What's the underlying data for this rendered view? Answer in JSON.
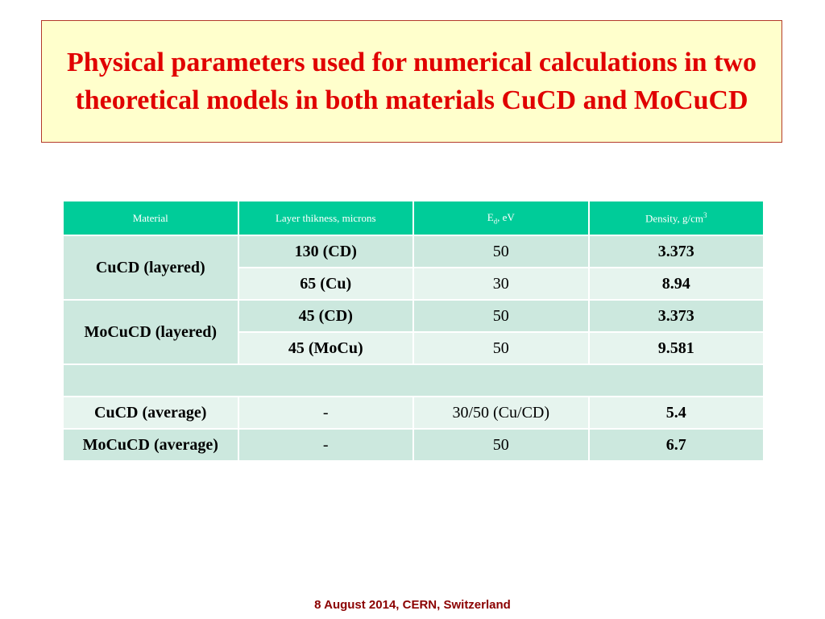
{
  "title": "Physical parameters used for numerical calculations in two theoretical models in both materials CuCD and MoCuCD",
  "table": {
    "headers": {
      "material": "Material",
      "thickness": "Layer thikness, microns",
      "ed_main": "E",
      "ed_sub": "d",
      "ed_unit": ", eV",
      "density_main": "Density, g/cm",
      "density_sup": "3"
    },
    "rows": [
      {
        "material": "CuCD (layered)",
        "thickness": "130 (CD)",
        "ed": "50",
        "density": "3.373"
      },
      {
        "material": "",
        "thickness": "65 (Cu)",
        "ed": "30",
        "density": "8.94"
      },
      {
        "material": "MoCuCD (layered)",
        "thickness": "45 (CD)",
        "ed": "50",
        "density": "3.373"
      },
      {
        "material": "",
        "thickness": "45 (MoCu)",
        "ed": "50",
        "density": "9.581"
      },
      {
        "material": "CuCD (average)",
        "thickness": "-",
        "ed": "30/50 (Cu/CD)",
        "density": "5.4"
      },
      {
        "material": "MoCuCD (average)",
        "thickness": "-",
        "ed": "50",
        "density": "6.7"
      }
    ]
  },
  "footer": "8 August 2014, CERN, Switzerland"
}
